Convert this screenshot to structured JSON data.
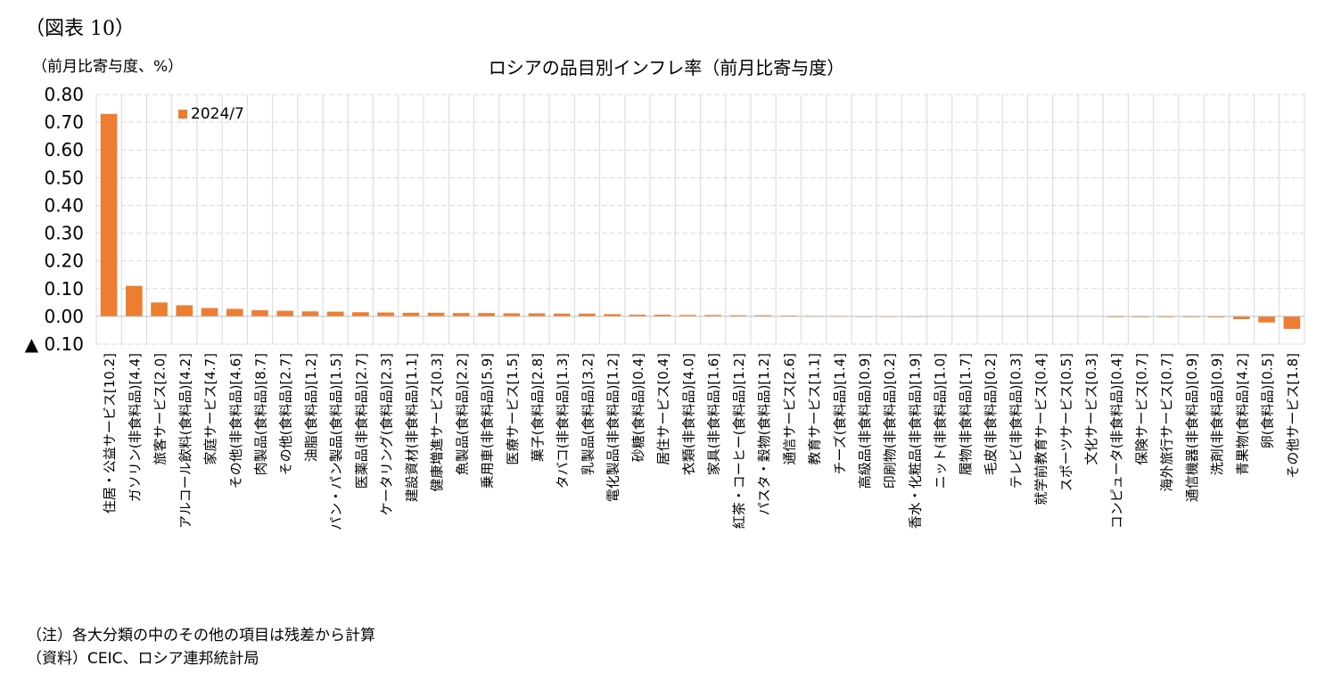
{
  "figure_label": "（図表 10）",
  "unit_label": "（前月比寄与度、%）",
  "notes": {
    "note1": "（注）各大分類の中のその他の項目は残差から計算",
    "note2": "（資料）CEIC、ロシア連邦統計局"
  },
  "colors": {
    "bar": "#ED7D31",
    "grid": "#d9d9d9"
  },
  "chart_data": {
    "type": "bar",
    "title": "ロシアの品目別インフレ率（前月比寄与度）",
    "xlabel": "",
    "ylabel": "",
    "ylim": [
      -0.1,
      0.8
    ],
    "yticks": [
      -0.1,
      0.0,
      0.1,
      0.2,
      0.3,
      0.4,
      0.5,
      0.6,
      0.7,
      0.8
    ],
    "ytick_labels": [
      "▲ 0.10",
      "0.00",
      "0.10",
      "0.20",
      "0.30",
      "0.40",
      "0.50",
      "0.60",
      "0.70",
      "0.80"
    ],
    "grid": true,
    "legend_position": "top-left",
    "categories": [
      "住居・公益サービス[10.2]",
      "ガソリン(非食料品)[4.4]",
      "旅客サービス[2.0]",
      "アルコール飲料(食料品)[4.2]",
      "家庭サービス[4.7]",
      "その他(非食料品)[4.6]",
      "肉製品(食料品)[8.7]",
      "その他(食料品)[2.7]",
      "油脂(食料品)[1.2]",
      "パン・パン製品(食料品)[1.5]",
      "医薬品(非食料品)[2.7]",
      "ケータリング(食料品)[2.3]",
      "建設資材(非食料品)[1.1]",
      "健康増進サービス[0.3]",
      "魚製品(食料品)[2.2]",
      "乗用車(非食料品)[5.9]",
      "医療サービス[1.5]",
      "菓子(食料品)[2.8]",
      "タバコ(非食料品)[1.3]",
      "乳製品(食料品)[3.2]",
      "電化製品(非食料品)[1.2]",
      "砂糖(食料品)[0.4]",
      "居住サービス[0.4]",
      "衣類(非食料品)[4.0]",
      "家具(非食料品)[1.6]",
      "紅茶・コーヒー(食料品)[1.2]",
      "パスタ・穀物(食料品)[1.2]",
      "通信サービス[2.6]",
      "教育サービス[1.1]",
      "チーズ(食料品)[1.4]",
      "高級品(非食料品)[0.9]",
      "印刷物(非食料品)[0.2]",
      "香水・化粧品(非食料品)[1.9]",
      "ニット(非食料品)[1.0]",
      "履物(非食料品)[1.7]",
      "毛皮(非食料品)[0.2]",
      "テレビ(非食料品)[0.3]",
      "就学前教育サービス[0.4]",
      "スポーツサービス[0.5]",
      "文化サービス[0.3]",
      "コンピュータ(非食料品)[0.4]",
      "保険サービス[0.7]",
      "海外旅行サービス[0.7]",
      "通信機器(非食料品)[0.9]",
      "洗剤(非食料品)[0.9]",
      "青果物(食料品)[4.2]",
      "卵(食料品)[0.5]",
      "その他サービス[1.8]"
    ],
    "series": [
      {
        "name": "2024/7",
        "values": [
          0.73,
          0.11,
          0.05,
          0.04,
          0.03,
          0.027,
          0.022,
          0.02,
          0.018,
          0.017,
          0.015,
          0.014,
          0.013,
          0.013,
          0.012,
          0.012,
          0.011,
          0.011,
          0.01,
          0.01,
          0.008,
          0.006,
          0.006,
          0.005,
          0.005,
          0.004,
          0.004,
          0.003,
          0.002,
          0.002,
          0.001,
          0.001,
          0.001,
          0.0,
          0.0,
          0.0,
          0.0,
          0.0,
          0.0,
          0.0,
          -0.001,
          -0.002,
          -0.003,
          -0.003,
          -0.004,
          -0.01,
          -0.022,
          -0.045
        ]
      }
    ]
  }
}
